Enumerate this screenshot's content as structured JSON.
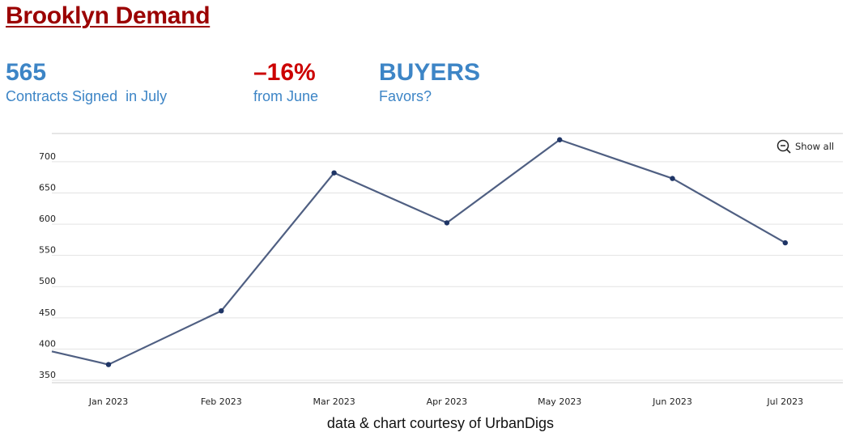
{
  "header": {
    "title": "Brooklyn Demand"
  },
  "stats": [
    {
      "value": "565",
      "label": "Contracts Signed  in July"
    },
    {
      "value": "–16%",
      "label": "from June"
    },
    {
      "value": "BUYERS",
      "label": "Favors?"
    }
  ],
  "colors": {
    "title": "#9b0000",
    "accent_blue": "#3d85c6",
    "accent_red": "#cc0000",
    "line": "#4f5f82",
    "point": "#1f3566"
  },
  "controls": {
    "show_all_label": "Show all",
    "show_all_icon": "zoom-out-icon"
  },
  "credit": "data & chart courtesy of UrbanDigs",
  "chart_data": {
    "type": "line",
    "x": [
      "Jan 2023",
      "Feb 2023",
      "Mar 2023",
      "Apr 2023",
      "May 2023",
      "Jun 2023",
      "Jul 2023"
    ],
    "series": [
      {
        "values": [
          370,
          456,
          677,
          597,
          730,
          668,
          565
        ]
      }
    ],
    "line_start_value": 391,
    "y_ticks": [
      350,
      400,
      450,
      500,
      550,
      600,
      650,
      700
    ],
    "ylim": [
      340,
      750
    ],
    "grid": true,
    "title": "",
    "xlabel": "",
    "ylabel": ""
  }
}
